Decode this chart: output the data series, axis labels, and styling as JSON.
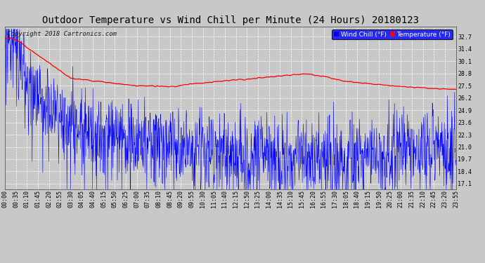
{
  "title": "Outdoor Temperature vs Wind Chill per Minute (24 Hours) 20180123",
  "copyright": "Copyright 2018 Cartronics.com",
  "legend_wind_chill": "Wind Chill (°F)",
  "legend_temperature": "Temperature (°F)",
  "y_ticks": [
    17.1,
    18.4,
    19.7,
    21.0,
    22.3,
    23.6,
    24.9,
    26.2,
    27.5,
    28.8,
    30.1,
    31.4,
    32.7
  ],
  "ylim_min": 16.5,
  "ylim_max": 33.8,
  "x_tick_labels": [
    "00:00",
    "00:35",
    "01:10",
    "01:45",
    "02:20",
    "02:55",
    "03:30",
    "04:05",
    "04:40",
    "05:15",
    "05:50",
    "06:25",
    "07:00",
    "07:35",
    "08:10",
    "08:45",
    "09:20",
    "09:55",
    "10:30",
    "11:05",
    "11:40",
    "12:15",
    "12:50",
    "13:25",
    "14:00",
    "14:35",
    "15:10",
    "15:45",
    "16:20",
    "16:55",
    "17:30",
    "18:05",
    "18:40",
    "19:15",
    "19:50",
    "20:25",
    "21:00",
    "21:35",
    "22:10",
    "22:45",
    "23:20",
    "23:55"
  ],
  "bg_color": "#c8c8c8",
  "plot_bg_color": "#c8c8c8",
  "wind_chill_color": "#0000ff",
  "temp_color": "#ff0000",
  "grid_color": "#ffffff",
  "title_color": "#000000",
  "title_fontsize": 10,
  "tick_fontsize": 6,
  "copyright_fontsize": 6.5
}
